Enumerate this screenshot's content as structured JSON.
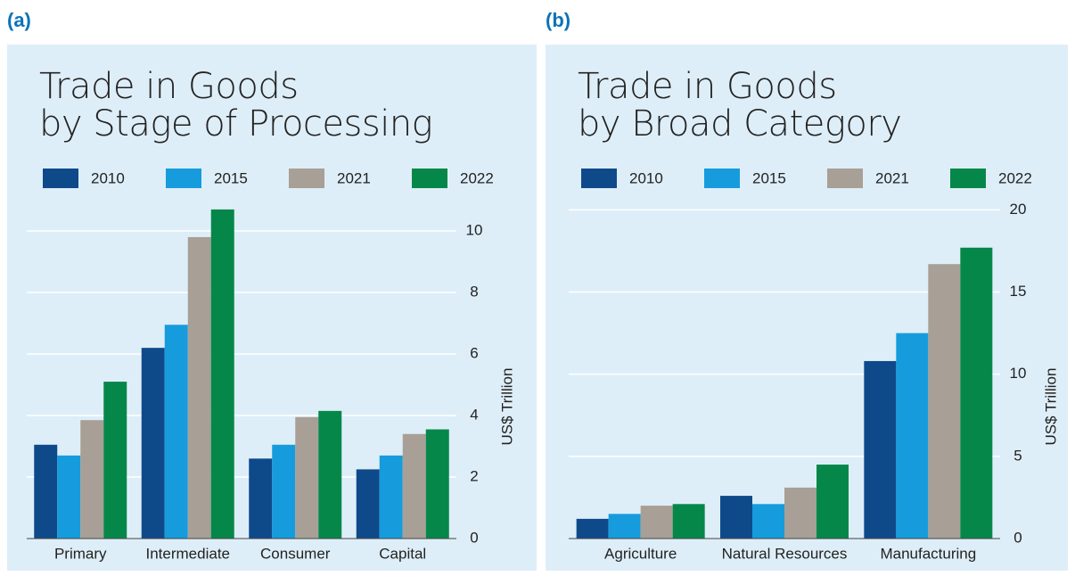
{
  "chart_data": [
    {
      "type": "bar",
      "label": "(a)",
      "title": "Trade in Goods\nby Stage of Processing",
      "y_label": "US$ Trillion",
      "categories": [
        "Primary",
        "Intermediate",
        "Consumer",
        "Capital"
      ],
      "series": [
        {
          "name": "2010",
          "color": "#0e4a8a",
          "values": [
            3.05,
            6.2,
            2.6,
            2.25
          ]
        },
        {
          "name": "2015",
          "color": "#169cdc",
          "values": [
            2.7,
            6.95,
            3.05,
            2.7
          ]
        },
        {
          "name": "2021",
          "color": "#a89f96",
          "values": [
            3.85,
            9.8,
            3.95,
            3.4
          ]
        },
        {
          "name": "2022",
          "color": "#06874a",
          "values": [
            5.1,
            10.7,
            4.15,
            3.55
          ]
        }
      ],
      "ylim": [
        0,
        10.9
      ],
      "yticks": [
        0,
        2,
        4,
        6,
        8,
        10
      ],
      "grid": true
    },
    {
      "type": "bar",
      "label": "(b)",
      "title": "Trade in Goods\nby Broad Category",
      "y_label": "US$ Trillion",
      "categories": [
        "Agriculture",
        "Natural Resources",
        "Manufacturing"
      ],
      "series": [
        {
          "name": "2010",
          "color": "#0e4a8a",
          "values": [
            1.2,
            2.6,
            10.8
          ]
        },
        {
          "name": "2015",
          "color": "#169cdc",
          "values": [
            1.5,
            2.1,
            12.5
          ]
        },
        {
          "name": "2021",
          "color": "#a89f96",
          "values": [
            2.0,
            3.1,
            16.7
          ]
        },
        {
          "name": "2022",
          "color": "#06874a",
          "values": [
            2.1,
            4.5,
            17.7
          ]
        }
      ],
      "ylim": [
        0,
        20.4
      ],
      "yticks": [
        0,
        5,
        10,
        15,
        20
      ],
      "grid": true
    }
  ]
}
